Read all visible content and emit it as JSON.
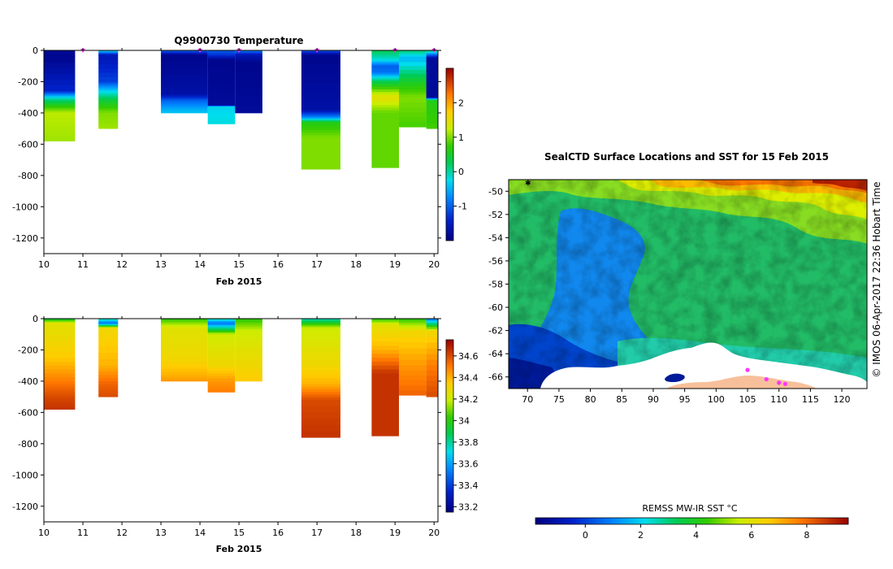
{
  "chart_data": [
    {
      "type": "heatmap",
      "title": "Q9900730  Temperature",
      "xlabel": "Feb 2015",
      "ylabel": "",
      "xlim": [
        10,
        20.1
      ],
      "ylim": [
        -1300,
        0
      ],
      "xticks": [
        "10",
        "11",
        "12",
        "13",
        "14",
        "15",
        "16",
        "17",
        "18",
        "19",
        "20"
      ],
      "yticks": [
        "0",
        "-200",
        "-400",
        "-600",
        "-800",
        "-1000",
        "-1200"
      ],
      "colorbar": {
        "ticks": [
          "2",
          "1",
          "0",
          "-1"
        ],
        "range": [
          -2,
          3
        ]
      },
      "profiles": [
        {
          "day": [
            10.0,
            10.8
          ],
          "bottom": -580,
          "layers": [
            [
              0,
              -1.8
            ],
            [
              -40,
              -1.9
            ],
            [
              -260,
              -1.4
            ],
            [
              -310,
              0.0
            ],
            [
              -350,
              0.6
            ],
            [
              -400,
              1.2
            ],
            [
              -580,
              1.1
            ]
          ]
        },
        {
          "day": [
            11.4,
            11.9
          ],
          "bottom": -500,
          "layers": [
            [
              0,
              -0.2
            ],
            [
              -30,
              -1.6
            ],
            [
              -200,
              -1.2
            ],
            [
              -260,
              -0.3
            ],
            [
              -320,
              0.4
            ],
            [
              -400,
              1.0
            ],
            [
              -500,
              1.1
            ]
          ]
        },
        {
          "day": [
            13.0,
            14.2
          ],
          "bottom": -400,
          "layers": [
            [
              0,
              -0.9
            ],
            [
              -30,
              -1.9
            ],
            [
              -280,
              -1.7
            ],
            [
              -320,
              -1.0
            ],
            [
              -380,
              -0.5
            ],
            [
              -400,
              -0.4
            ]
          ]
        },
        {
          "day": [
            14.2,
            14.9
          ],
          "bottom": -470,
          "layers": [
            [
              0,
              -1.0
            ],
            [
              -30,
              -1.3
            ],
            [
              -60,
              -1.9
            ],
            [
              -350,
              -1.8
            ],
            [
              -360,
              -0.3
            ],
            [
              -470,
              -0.2
            ]
          ]
        },
        {
          "day": [
            14.9,
            15.6
          ],
          "bottom": -400,
          "layers": [
            [
              0,
              -0.8
            ],
            [
              -30,
              -1.6
            ],
            [
              -80,
              -1.9
            ],
            [
              -400,
              -1.8
            ]
          ]
        },
        {
          "day": [
            16.6,
            17.6
          ],
          "bottom": -760,
          "layers": [
            [
              0,
              -1.0
            ],
            [
              -30,
              -1.9
            ],
            [
              -380,
              -1.7
            ],
            [
              -430,
              -0.7
            ],
            [
              -460,
              0.6
            ],
            [
              -560,
              1.0
            ],
            [
              -760,
              1.0
            ]
          ]
        },
        {
          "day": [
            18.4,
            19.1
          ],
          "bottom": -750,
          "layers": [
            [
              0,
              0.3
            ],
            [
              -60,
              -0.2
            ],
            [
              -100,
              -1.0
            ],
            [
              -140,
              -0.9
            ],
            [
              -200,
              0.3
            ],
            [
              -300,
              1.5
            ],
            [
              -400,
              0.9
            ],
            [
              -750,
              0.9
            ]
          ]
        },
        {
          "day": [
            19.1,
            19.8
          ],
          "bottom": -490,
          "layers": [
            [
              0,
              0.2
            ],
            [
              -50,
              -0.5
            ],
            [
              -200,
              0.5
            ],
            [
              -300,
              1.0
            ],
            [
              -490,
              0.8
            ]
          ]
        },
        {
          "day": [
            19.8,
            20.1
          ],
          "bottom": -500,
          "layers": [
            [
              0,
              0.2
            ],
            [
              -50,
              -1.8
            ],
            [
              -300,
              -1.8
            ],
            [
              -320,
              0.6
            ],
            [
              -500,
              0.8
            ]
          ]
        }
      ],
      "markers_day": [
        11.0,
        14.0,
        15.0,
        17.0,
        19.0,
        20.0
      ]
    },
    {
      "type": "heatmap",
      "title": "",
      "xlabel": "Feb 2015",
      "ylabel": "",
      "xlim": [
        10,
        20.1
      ],
      "ylim": [
        -1300,
        0
      ],
      "xticks": [
        "10",
        "11",
        "12",
        "13",
        "14",
        "15",
        "16",
        "17",
        "18",
        "19",
        "20"
      ],
      "yticks": [
        "0",
        "-200",
        "-400",
        "-600",
        "-800",
        "-1000",
        "-1200"
      ],
      "colorbar": {
        "ticks": [
          "34.6",
          "34.4",
          "34.2",
          "34",
          "33.8",
          "33.6",
          "33.4",
          "33.2"
        ],
        "range": [
          33.15,
          34.75
        ]
      },
      "profiles": [
        {
          "day": [
            10.0,
            10.8
          ],
          "bottom": -580,
          "layers": [
            [
              0,
              33.9
            ],
            [
              -30,
              34.25
            ],
            [
              -250,
              34.35
            ],
            [
              -400,
              34.5
            ],
            [
              -500,
              34.6
            ],
            [
              -580,
              34.65
            ]
          ]
        },
        {
          "day": [
            11.4,
            11.9
          ],
          "bottom": -500,
          "layers": [
            [
              0,
              33.8
            ],
            [
              -30,
              33.5
            ],
            [
              -60,
              34.3
            ],
            [
              -300,
              34.4
            ],
            [
              -420,
              34.55
            ],
            [
              -500,
              34.6
            ]
          ]
        },
        {
          "day": [
            13.0,
            14.2
          ],
          "bottom": -400,
          "layers": [
            [
              0,
              34.0
            ],
            [
              -60,
              34.25
            ],
            [
              -250,
              34.3
            ],
            [
              -360,
              34.4
            ],
            [
              -400,
              34.45
            ]
          ]
        },
        {
          "day": [
            14.2,
            14.9
          ],
          "bottom": -470,
          "layers": [
            [
              0,
              33.8
            ],
            [
              -30,
              33.5
            ],
            [
              -100,
              34.2
            ],
            [
              -300,
              34.3
            ],
            [
              -400,
              34.45
            ],
            [
              -470,
              34.5
            ]
          ]
        },
        {
          "day": [
            14.9,
            15.6
          ],
          "bottom": -400,
          "layers": [
            [
              0,
              34.0
            ],
            [
              -80,
              34.2
            ],
            [
              -300,
              34.3
            ],
            [
              -400,
              34.35
            ]
          ]
        },
        {
          "day": [
            16.6,
            17.6
          ],
          "bottom": -760,
          "layers": [
            [
              0,
              33.75
            ],
            [
              -60,
              34.2
            ],
            [
              -300,
              34.3
            ],
            [
              -420,
              34.4
            ],
            [
              -520,
              34.6
            ],
            [
              -760,
              34.65
            ]
          ]
        },
        {
          "day": [
            18.4,
            19.1
          ],
          "bottom": -750,
          "layers": [
            [
              0,
              34.0
            ],
            [
              -40,
              34.25
            ],
            [
              -200,
              34.4
            ],
            [
              -350,
              34.65
            ],
            [
              -750,
              34.65
            ]
          ]
        },
        {
          "day": [
            19.1,
            19.8
          ],
          "bottom": -490,
          "layers": [
            [
              0,
              34.0
            ],
            [
              -80,
              34.3
            ],
            [
              -300,
              34.45
            ],
            [
              -490,
              34.55
            ]
          ]
        },
        {
          "day": [
            19.8,
            20.1
          ],
          "bottom": -500,
          "layers": [
            [
              0,
              33.5
            ],
            [
              -80,
              34.3
            ],
            [
              -300,
              34.5
            ],
            [
              -500,
              34.6
            ]
          ]
        }
      ]
    },
    {
      "type": "heatmap",
      "title": "SealCTD Surface Locations and SST for 15 Feb 2015",
      "xlabel": "",
      "ylabel": "",
      "xlim": [
        67,
        124
      ],
      "ylim": [
        -67,
        -49
      ],
      "xticks": [
        "70",
        "75",
        "80",
        "85",
        "90",
        "95",
        "100",
        "105",
        "110",
        "115",
        "120"
      ],
      "yticks": [
        "-50",
        "-52",
        "-54",
        "-56",
        "-58",
        "-60",
        "-62",
        "-64",
        "-66"
      ],
      "colorbar": {
        "label": "REMSS MW-IR SST °C",
        "ticks": [
          "0",
          "2",
          "4",
          "6",
          "8"
        ],
        "range": [
          -1.8,
          9.5
        ]
      },
      "markers": [
        [
          105,
          -65.4
        ],
        [
          108,
          -66.2
        ],
        [
          110,
          -66.5
        ],
        [
          111,
          -66.6
        ]
      ],
      "side_text": "©  IMOS 06-Apr-2017 22:36 Hobart Time"
    }
  ],
  "colors": {
    "marker": "#ff33ff",
    "ice": "#ffffff",
    "land": "#f7c09a",
    "frame": "#000000"
  }
}
